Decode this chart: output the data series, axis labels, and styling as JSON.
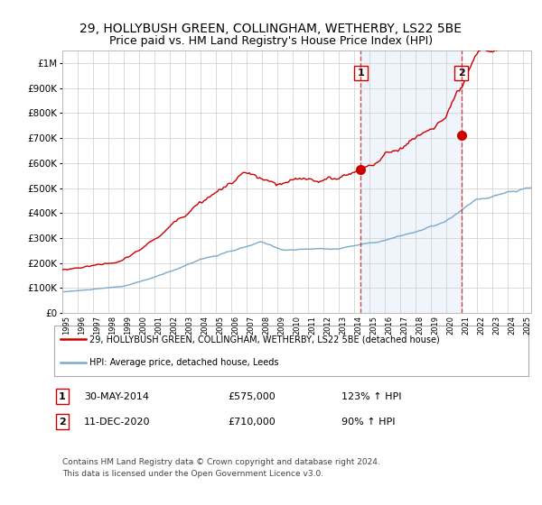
{
  "title": "29, HOLLYBUSH GREEN, COLLINGHAM, WETHERBY, LS22 5BE",
  "subtitle": "Price paid vs. HM Land Registry's House Price Index (HPI)",
  "legend_line1": "29, HOLLYBUSH GREEN, COLLINGHAM, WETHERBY, LS22 5BE (detached house)",
  "legend_line2": "HPI: Average price, detached house, Leeds",
  "annotation1_date": "30-MAY-2014",
  "annotation1_price": "£575,000",
  "annotation1_hpi": "123% ↑ HPI",
  "annotation2_date": "11-DEC-2020",
  "annotation2_price": "£710,000",
  "annotation2_hpi": "90% ↑ HPI",
  "footer": "Contains HM Land Registry data © Crown copyright and database right 2024.\nThis data is licensed under the Open Government Licence v3.0.",
  "red_color": "#cc0000",
  "blue_color": "#7aaace",
  "shading_color": "#ddeeff",
  "background_color": "#ffffff",
  "grid_color": "#cccccc",
  "title_fontsize": 10,
  "subtitle_fontsize": 9,
  "ylim": [
    0,
    1050000
  ],
  "yticks": [
    0,
    100000,
    200000,
    300000,
    400000,
    500000,
    600000,
    700000,
    800000,
    900000,
    1000000
  ],
  "ytick_labels": [
    "£0",
    "£100K",
    "£200K",
    "£300K",
    "£400K",
    "£500K",
    "£600K",
    "£700K",
    "£800K",
    "£900K",
    "£1M"
  ],
  "xlim_start": 1995,
  "xlim_end": 2025.5,
  "sale1_year": 2014.42,
  "sale1_value": 575000,
  "sale2_year": 2020.95,
  "sale2_value": 710000
}
